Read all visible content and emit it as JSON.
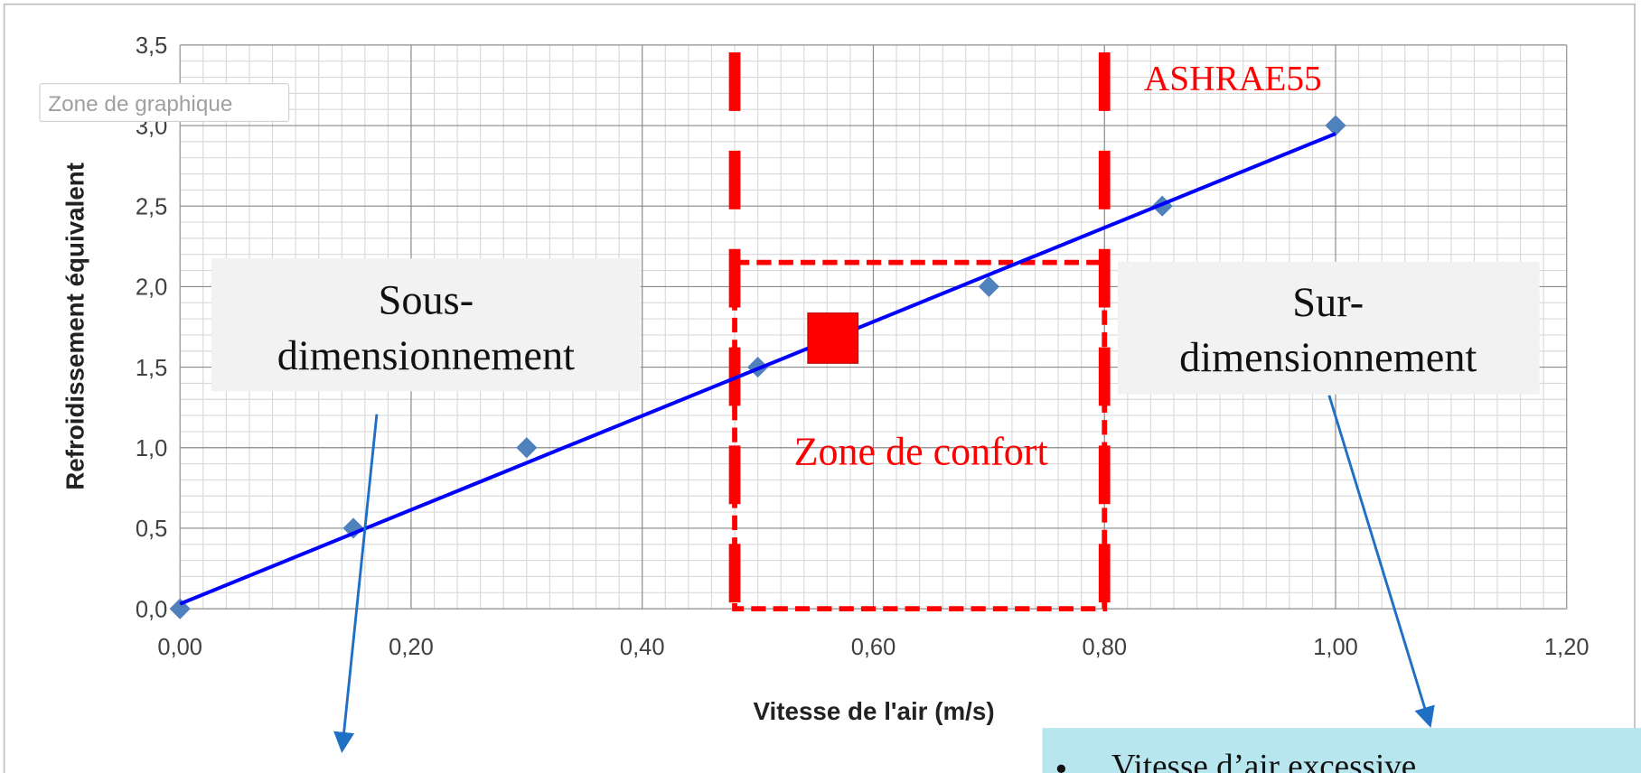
{
  "chart_data": {
    "type": "scatter",
    "x_label": "Vitesse de l'air (m/s)",
    "y_label": "Refroidissement équivalent",
    "series": [
      {
        "x": [
          0,
          0.15,
          0.3,
          0.5,
          0.7,
          0.85,
          1.0
        ],
        "values": [
          0,
          0.5,
          1.0,
          1.5,
          2.0,
          2.5,
          3.0
        ],
        "color": "#4f81bd"
      }
    ],
    "trendline": {
      "x": [
        0,
        1.0
      ],
      "values": [
        0.03,
        2.95
      ],
      "color": "#0000ff"
    },
    "highlight": {
      "x": 0.565,
      "y": 1.68,
      "color": "#ff0000"
    },
    "ashrae_lines": [
      0.48,
      0.8
    ],
    "comfort_zone": {
      "x": [
        0.48,
        0.8
      ],
      "y": [
        0,
        2.15
      ]
    },
    "xlim": [
      0,
      1.2
    ],
    "ylim": [
      0,
      3.5
    ],
    "xticks": [
      {
        "value": 0,
        "label": "0,00"
      },
      {
        "value": 0.2,
        "label": "0,20"
      },
      {
        "value": 0.4,
        "label": "0,40"
      },
      {
        "value": 0.6,
        "label": "0,60"
      },
      {
        "value": 0.8,
        "label": "0,80"
      },
      {
        "value": 1.0,
        "label": "1,00"
      },
      {
        "value": 1.2,
        "label": "1,20"
      }
    ],
    "yticks": [
      {
        "value": 0,
        "label": "0,0"
      },
      {
        "value": 0.5,
        "label": "0,5"
      },
      {
        "value": 1.0,
        "label": "1,0"
      },
      {
        "value": 1.5,
        "label": "1,5"
      },
      {
        "value": 2.0,
        "label": "2,0"
      },
      {
        "value": 2.5,
        "label": "2,5"
      },
      {
        "value": 3.0,
        "label": "3,0"
      },
      {
        "value": 3.5,
        "label": "3,5"
      }
    ],
    "grid": true,
    "minor_grid": {
      "x_step": 0.02,
      "y_step": 0.1
    },
    "labels": {
      "ashrae": "ASHRAE55",
      "comfort": "Zone de confort",
      "under": [
        "Sous-",
        "dimensionnement"
      ],
      "over": [
        "Sur-",
        "dimensionnement"
      ],
      "tooltip": "Zone de graphique",
      "note": "Vitesse d’air excessive"
    }
  }
}
